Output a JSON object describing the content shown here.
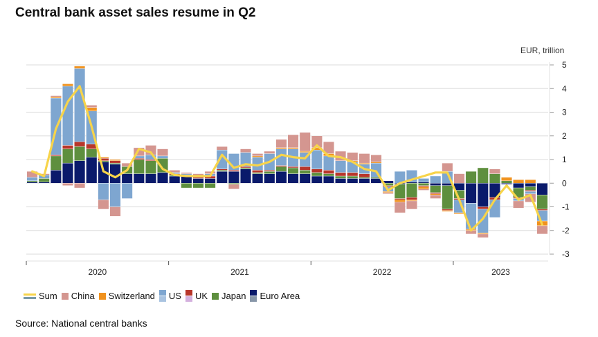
{
  "title": "Central bank asset sales resume in Q2",
  "source": "Source: National central banks",
  "chart_data": {
    "type": "bar",
    "stacked": true,
    "title": "Central bank asset sales resume in Q2",
    "ylabel": "EUR, trillion",
    "xlabel": "",
    "ylim": [
      -3,
      5
    ],
    "yticks": [
      5,
      4,
      3,
      2,
      1,
      0,
      -1,
      -2,
      -3
    ],
    "y_axis_side": "right",
    "grid": true,
    "legend_position": "bottom",
    "x_year_labels": [
      "2020",
      "2021",
      "2022",
      "2023"
    ],
    "periods_per_year": 12,
    "start": "2020-01",
    "colors": {
      "Euro Area": "#0a1a6b",
      "Japan": "#5e8f3e",
      "UK": "#b8362a",
      "US": "#7ea6d0",
      "Switzerland": "#f0921e",
      "China": "#d49690",
      "Sum": "#f7d44a"
    },
    "legend": [
      {
        "name": "Sum",
        "kind": "line",
        "colors": [
          "#f7d44a",
          "#7a9aa8"
        ]
      },
      {
        "name": "China",
        "kind": "box",
        "colors": [
          "#d49690"
        ]
      },
      {
        "name": "Switzerland",
        "kind": "box",
        "colors": [
          "#f0921e"
        ]
      },
      {
        "name": "US",
        "kind": "box2",
        "colors": [
          "#7ea6d0",
          "#a9c3e0"
        ]
      },
      {
        "name": "UK",
        "kind": "box2",
        "colors": [
          "#b8362a",
          "#d4b0de"
        ]
      },
      {
        "name": "Japan",
        "kind": "box",
        "colors": [
          "#5e8f3e"
        ]
      },
      {
        "name": "Euro Area",
        "kind": "box2",
        "colors": [
          "#0a1a6b",
          "#8796a8"
        ]
      }
    ],
    "series": [
      {
        "name": "Euro Area",
        "values": [
          0.05,
          0.05,
          0.55,
          0.85,
          0.95,
          1.1,
          0.9,
          0.8,
          0.4,
          0.4,
          0.4,
          0.45,
          0.3,
          0.3,
          0.2,
          0.2,
          0.5,
          0.5,
          0.6,
          0.4,
          0.4,
          0.5,
          0.4,
          0.4,
          0.3,
          0.3,
          0.2,
          0.2,
          0.2,
          0.2,
          0.1,
          -0.05,
          0.05,
          0.05,
          -0.1,
          -0.1,
          -0.3,
          -0.85,
          -1.0,
          -0.6,
          -0.05,
          -0.2,
          -0.15,
          -0.5
        ]
      },
      {
        "name": "Japan",
        "values": [
          0.05,
          0.15,
          0.6,
          0.6,
          0.6,
          0.35,
          0.05,
          0.05,
          0.3,
          0.6,
          0.55,
          0.6,
          0.05,
          -0.2,
          -0.2,
          -0.2,
          0.05,
          -0.05,
          0.05,
          0.05,
          0.1,
          0.2,
          0.25,
          0.15,
          0.15,
          0.1,
          0.1,
          0.1,
          0.05,
          0.05,
          -0.1,
          -0.6,
          -0.6,
          -0.1,
          -0.3,
          -1.0,
          -0.35,
          0.5,
          0.65,
          0.4,
          0.1,
          -0.4,
          -0.15,
          -0.6
        ]
      },
      {
        "name": "UK",
        "values": [
          0.0,
          0.0,
          0.05,
          0.15,
          0.2,
          0.2,
          0.1,
          0.1,
          0.0,
          0.05,
          0.05,
          0.0,
          0.05,
          0.05,
          0.05,
          0.1,
          0.05,
          0.05,
          0.05,
          0.1,
          0.05,
          0.05,
          0.05,
          0.15,
          0.15,
          0.15,
          0.15,
          0.15,
          0.15,
          0.0,
          -0.05,
          -0.05,
          -0.1,
          -0.05,
          -0.05,
          -0.05,
          -0.05,
          0.0,
          -0.1,
          -0.1,
          0.0,
          -0.05,
          -0.05,
          -0.05
        ]
      },
      {
        "name": "US",
        "values": [
          0.15,
          0.15,
          2.4,
          2.5,
          3.1,
          1.4,
          -0.7,
          -1.0,
          -0.65,
          0.1,
          0.2,
          0.1,
          0.05,
          0.05,
          0.05,
          0.1,
          0.8,
          0.7,
          0.6,
          0.55,
          0.7,
          0.7,
          0.75,
          0.6,
          0.8,
          0.6,
          0.5,
          0.45,
          0.4,
          0.6,
          -0.2,
          0.5,
          0.5,
          0.15,
          0.3,
          0.5,
          -0.55,
          -1.1,
          -1.0,
          -0.75,
          0.0,
          -0.1,
          -0.1,
          -0.45
        ]
      },
      {
        "name": "Switzerland",
        "values": [
          0.0,
          0.0,
          0.05,
          0.1,
          0.1,
          0.15,
          0.05,
          0.05,
          0.0,
          0.0,
          0.0,
          0.0,
          0.0,
          0.0,
          0.0,
          0.0,
          0.0,
          0.0,
          0.0,
          0.05,
          0.0,
          0.05,
          0.05,
          0.05,
          0.1,
          0.1,
          0.0,
          0.05,
          0.05,
          0.05,
          -0.05,
          -0.1,
          -0.05,
          -0.1,
          -0.05,
          -0.05,
          -0.05,
          -0.05,
          -0.05,
          0.0,
          0.15,
          0.15,
          0.15,
          -0.2
        ]
      },
      {
        "name": "China",
        "values": [
          0.25,
          0.05,
          0.05,
          -0.1,
          -0.2,
          0.1,
          -0.4,
          -0.4,
          0.15,
          0.35,
          0.4,
          0.3,
          0.1,
          0.05,
          0.1,
          0.1,
          0.15,
          -0.2,
          0.15,
          0.1,
          0.1,
          0.35,
          0.55,
          0.8,
          0.5,
          0.5,
          0.4,
          0.35,
          0.4,
          0.3,
          -0.05,
          -0.45,
          -0.35,
          -0.05,
          -0.15,
          0.35,
          0.4,
          -0.15,
          -0.15,
          0.2,
          0.0,
          -0.3,
          -0.35,
          -0.35
        ]
      },
      {
        "name": "Sum",
        "type": "line",
        "values": [
          0.5,
          0.3,
          2.3,
          3.45,
          4.1,
          2.4,
          0.5,
          0.25,
          0.55,
          1.45,
          1.3,
          0.6,
          0.35,
          0.3,
          0.3,
          0.3,
          1.2,
          0.65,
          0.8,
          0.75,
          0.9,
          1.2,
          1.1,
          1.05,
          1.6,
          1.15,
          1.1,
          0.9,
          0.6,
          0.5,
          -0.3,
          0.0,
          0.15,
          0.3,
          0.45,
          0.45,
          -0.7,
          -2.0,
          -1.5,
          -0.7,
          -0.1,
          -0.7,
          -0.5,
          -1.75
        ]
      }
    ]
  }
}
